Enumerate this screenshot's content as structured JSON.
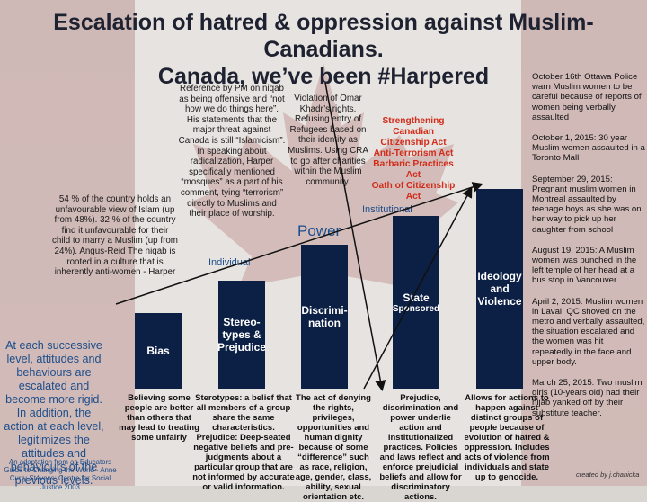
{
  "title": {
    "line1": "Escalation of hatred & oppression against Muslim-Canadians.",
    "line2": "Canada, we’ve been #Harpered"
  },
  "levels": {
    "individual": "Individual",
    "power": "Power",
    "institutional": "Institutional"
  },
  "bars": [
    {
      "label": "Bias",
      "sub": ""
    },
    {
      "label": "Stereo-types & Prejudice",
      "sub": ""
    },
    {
      "label": "Discrimi-nation",
      "sub": ""
    },
    {
      "label": "State",
      "sub": "Sponsored"
    },
    {
      "label": "Ideology and Violence",
      "sub": ""
    }
  ],
  "descriptions": [
    "Believing some people are better than others that may lead to treating some unfairly",
    "Sterotypes: a belief that all members of a group share the same characteristics. Prejudice: Deep-seated negative beliefs and pre-judgments about a particular group that are not informed by accurate or valid information.",
    "The act of denying the rights, privileges, opportunities and human dignity because of some “difference” such as race, religion, age, gender, class, ability, sexual orientation etc.",
    "Prejudice, discrimination and power underlie action and institutionalized practices. Policies and laws reflect and enforce prejudicial beliefs and allow for discriminatory actions.",
    "Allows for actions to happen against distinct groups of people because of evolution of hatred & oppression. Includes acts of violence from individuals and state up to genocide."
  ],
  "notes": {
    "poll": "54 % of the country holds an unfavourable view of Islam (up from 48%). 32 % of the country find it unfavourable for their child to marry a Muslim (up from 24%). Angus-Reid The niqab is rooted in a culture that is inherently anti-women - Harper",
    "pm": "Reference by PM on niqab as being offensive and “not how we do things here”. His statements that the major threat against Canada is still “Islamicism”. In speaking about radicalization, Harper specifically mentioned “mosques” as a part of his comment, tying “terrorism” directly to Muslims and their place of worship.",
    "omar": "Violation of Omar Khadr’s rights. Refusing entry of Refugees based on their identity as Muslims. Using CRA to go after charities within the Muslim community."
  },
  "laws": [
    "Strengthening Canadian Citizenship Act",
    "Anti-Terrorism Act",
    "Barbaric Practices Act",
    "Oath of Citizenship Act"
  ],
  "incidents": [
    "October 16th Ottawa Police warn Muslim women to be careful because of reports of women being verbally assaulted",
    "October 1, 2015: 30 year Muslim women assaulted in a Toronto Mall",
    "September 29, 2015: Pregnant muslim women in Montreal assaulted by teenage boys as she was on her way to pick up her daughter from school",
    "August 19, 2015: A Muslim women was punched in the left temple of her head at a bus stop in Vancouver.",
    "April 2, 2015: Muslim women in Laval, QC shoved on the metro and verbally assaulted, the situation escalated and the women was hit repeatedly in the face and upper body.",
    "March 25, 2015: Two muslim girls (10-years old) had their hijab yanked off by their substitute teacher."
  ],
  "summary": "At each successive level, attitudes and behaviours are escalated and become more rigid. In addition, the action at each level, legitimizes the attitudes and behaviours of the previous levels.",
  "credit": "An adaptation from an Educators Guide to Changing the World - Anne Curry-Stevens: Centre for Social Justice 2003",
  "creator": "created by j.chanicka",
  "colors": {
    "bar": "#0c1f45",
    "laws": "#d22c1a",
    "accent": "#1d4e8c",
    "flag_red": "#c9aaa8"
  }
}
